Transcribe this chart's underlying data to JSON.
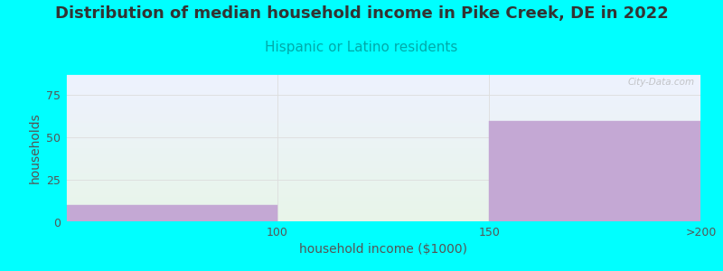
{
  "title": "Distribution of median household income in Pike Creek, DE in 2022",
  "subtitle": "Hispanic or Latino residents",
  "xlabel": "household income ($1000)",
  "ylabel": "households",
  "background_color": "#00FFFF",
  "plot_bg_color_top": "#eef2ff",
  "plot_bg_color_bottom": "#e8f5e9",
  "bar_color": "#c4a8d4",
  "bar_edge_color": "#c4a8d4",
  "title_fontsize": 13,
  "subtitle_fontsize": 11,
  "xlabel_fontsize": 10,
  "ylabel_fontsize": 10,
  "title_color": "#333333",
  "subtitle_color": "#00AAAA",
  "label_color": "#555555",
  "tick_color": "#555555",
  "yticks": [
    0,
    25,
    50,
    75
  ],
  "xtick_labels": [
    "100",
    "150",
    ">200"
  ],
  "xtick_positions": [
    1,
    2,
    3
  ],
  "bars": [
    {
      "x_left": 0,
      "x_right": 1,
      "height": 10
    },
    {
      "x_left": 2,
      "x_right": 3,
      "height": 60
    }
  ],
  "xlim": [
    0,
    3
  ],
  "ylim": [
    0,
    88
  ],
  "watermark": "City-Data.com",
  "gridline_color": "#dddddd"
}
